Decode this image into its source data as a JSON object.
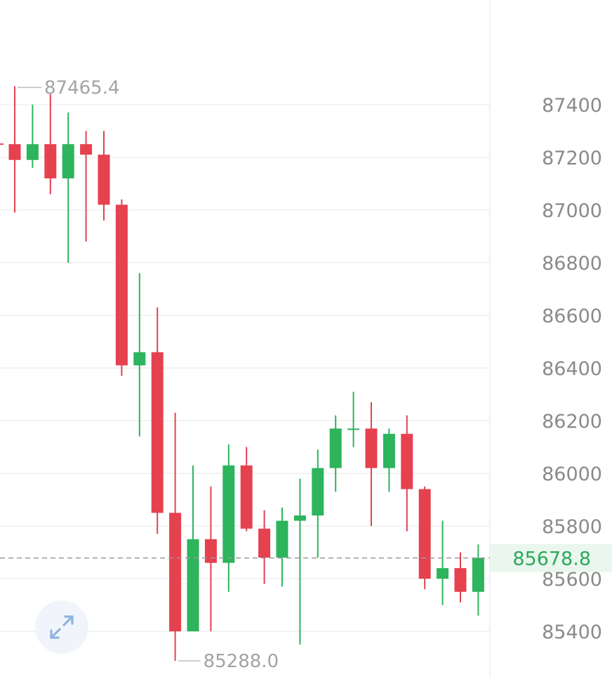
{
  "chart_data": {
    "type": "candlestick",
    "y_ticks": [
      87400,
      87200,
      87000,
      86800,
      86600,
      86400,
      86200,
      86000,
      85800,
      85600,
      85400
    ],
    "ylim": [
      85240,
      87740
    ],
    "grid": true,
    "annotations": {
      "high": {
        "label": "87465.4",
        "value": 87465.4
      },
      "low": {
        "label": "85288.0",
        "value": 85288.0
      }
    },
    "current_price": {
      "label": "85678.8",
      "value": 85678.8
    },
    "candles": [
      {
        "open": 87250,
        "high": 87470,
        "low": 86990,
        "close": 87190
      },
      {
        "open": 87190,
        "high": 87400,
        "low": 87160,
        "close": 87250
      },
      {
        "open": 87250,
        "high": 87440,
        "low": 87060,
        "close": 87120
      },
      {
        "open": 87120,
        "high": 87370,
        "low": 86800,
        "close": 87250
      },
      {
        "open": 87250,
        "high": 87300,
        "low": 86880,
        "close": 87210
      },
      {
        "open": 87210,
        "high": 87300,
        "low": 86960,
        "close": 87020
      },
      {
        "open": 87020,
        "high": 87040,
        "low": 86370,
        "close": 86410
      },
      {
        "open": 86410,
        "high": 86760,
        "low": 86140,
        "close": 86460
      },
      {
        "open": 86460,
        "high": 86630,
        "low": 85770,
        "close": 85850
      },
      {
        "open": 85850,
        "high": 86230,
        "low": 85288,
        "close": 85400
      },
      {
        "open": 85400,
        "high": 86030,
        "low": 85400,
        "close": 85750
      },
      {
        "open": 85750,
        "high": 85950,
        "low": 85400,
        "close": 85660
      },
      {
        "open": 85660,
        "high": 86110,
        "low": 85550,
        "close": 86030
      },
      {
        "open": 86030,
        "high": 86100,
        "low": 85780,
        "close": 85790
      },
      {
        "open": 85790,
        "high": 85860,
        "low": 85580,
        "close": 85680
      },
      {
        "open": 85680,
        "high": 85870,
        "low": 85570,
        "close": 85820
      },
      {
        "open": 85820,
        "high": 85980,
        "low": 85350,
        "close": 85840
      },
      {
        "open": 85840,
        "high": 86090,
        "low": 85680,
        "close": 86020
      },
      {
        "open": 86020,
        "high": 86220,
        "low": 85930,
        "close": 86170
      },
      {
        "open": 86170,
        "high": 86310,
        "low": 86100,
        "close": 86170
      },
      {
        "open": 86170,
        "high": 86270,
        "low": 85800,
        "close": 86020
      },
      {
        "open": 86020,
        "high": 86170,
        "low": 85930,
        "close": 86150
      },
      {
        "open": 86150,
        "high": 86220,
        "low": 85780,
        "close": 85940
      },
      {
        "open": 85940,
        "high": 85950,
        "low": 85560,
        "close": 85600
      },
      {
        "open": 85600,
        "high": 85820,
        "low": 85500,
        "close": 85640
      },
      {
        "open": 85640,
        "high": 85700,
        "low": 85510,
        "close": 85550
      },
      {
        "open": 85550,
        "high": 85730,
        "low": 85460,
        "close": 85678.8
      }
    ],
    "colors": {
      "up": "#2db45c",
      "down": "#e5414f",
      "grid": "#efefef",
      "current_bg": "#e9f7ee",
      "current_text": "#2ea85a"
    }
  },
  "controls": {
    "expand_icon": "expand-arrows-icon"
  }
}
